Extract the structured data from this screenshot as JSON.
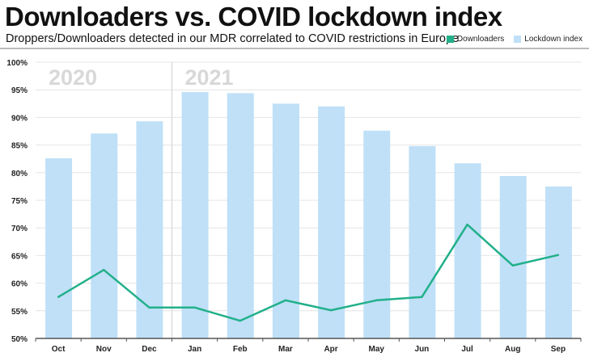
{
  "chart_data": {
    "type": "bar+line",
    "title": "Downloaders vs. COVID lockdown index",
    "subtitle": "Droppers/Downloaders detected in our MDR correlated to COVID restrictions in Europe",
    "categories": [
      "Oct",
      "Nov",
      "Dec",
      "Jan",
      "Feb",
      "Mar",
      "Apr",
      "May",
      "Jun",
      "Jul",
      "Aug",
      "Sep"
    ],
    "year_labels": [
      {
        "label": "2020",
        "start_index": 0
      },
      {
        "label": "2021",
        "start_index": 3
      }
    ],
    "series": [
      {
        "name": "Lockdown index",
        "type": "bar",
        "color": "#bfe0f7",
        "values": [
          82.6,
          87.1,
          89.3,
          94.6,
          94.4,
          92.5,
          92.0,
          87.6,
          84.8,
          81.7,
          79.4,
          77.5
        ]
      },
      {
        "name": "Downloaders",
        "type": "line",
        "color": "#22b08a",
        "values": [
          57.5,
          62.4,
          55.6,
          55.6,
          53.2,
          56.9,
          55.1,
          56.9,
          57.5,
          70.6,
          63.2,
          65.1
        ]
      }
    ],
    "ylim": [
      50,
      100
    ],
    "yticks": [
      "50%",
      "55%",
      "60%",
      "65%",
      "70%",
      "75%",
      "80%",
      "85%",
      "90%",
      "95%",
      "100%"
    ],
    "ytick_values": [
      50,
      55,
      60,
      65,
      70,
      75,
      80,
      85,
      90,
      95,
      100
    ],
    "grid": true,
    "legend_position": "top-right"
  }
}
